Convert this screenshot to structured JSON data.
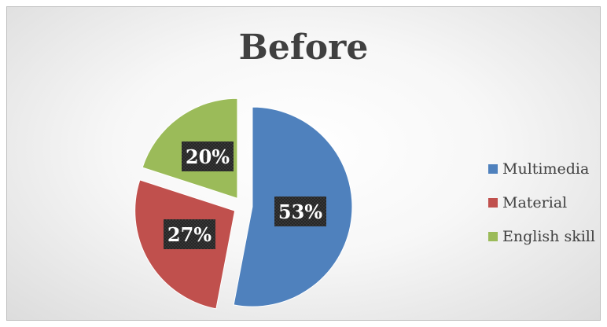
{
  "chart_data": {
    "type": "pie",
    "title": "Before",
    "categories": [
      "Multimedia",
      "Material",
      "English skill"
    ],
    "values": [
      53,
      27,
      20
    ],
    "labels": [
      "53%",
      "27%",
      "20%"
    ],
    "colors": [
      "#4f81bd",
      "#c0504d",
      "#9bbb59"
    ],
    "legend_position": "right",
    "exploded": true
  }
}
